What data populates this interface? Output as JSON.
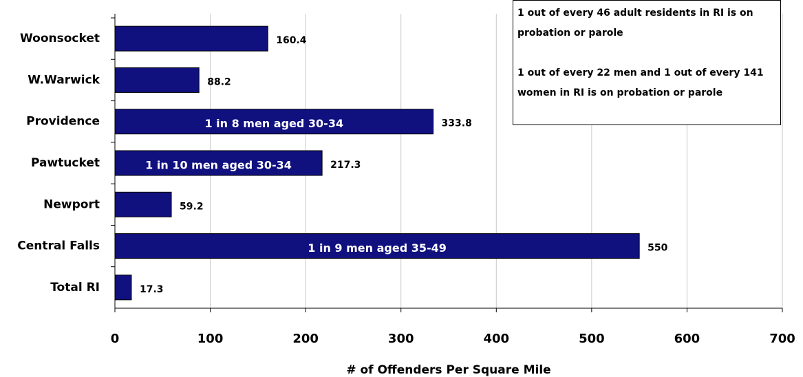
{
  "chart_data": {
    "type": "bar",
    "orientation": "horizontal",
    "categories": [
      "Woonsocket",
      "W.Warwick",
      "Providence",
      "Pawtucket",
      "Newport",
      "Central Falls",
      "Total RI"
    ],
    "values": [
      160.4,
      88.2,
      333.8,
      217.3,
      59.2,
      550,
      17.3
    ],
    "bar_labels": [
      null,
      null,
      "1 in 8 men aged 30-34",
      "1 in 10 men aged 30-34",
      null,
      "1 in 9 men aged 35-49",
      null
    ],
    "color": "#10107f",
    "xlabel": "# of Offenders Per Square Mile",
    "xlim": [
      0,
      700
    ],
    "xticks": [
      0,
      100,
      200,
      300,
      400,
      500,
      600,
      700
    ],
    "grid": true,
    "note": [
      "1 out of every 46 adult residents in RI is on probation or parole",
      "1 out of every 22 men  and 1 out of every 141 women in RI is on probation or parole"
    ]
  }
}
